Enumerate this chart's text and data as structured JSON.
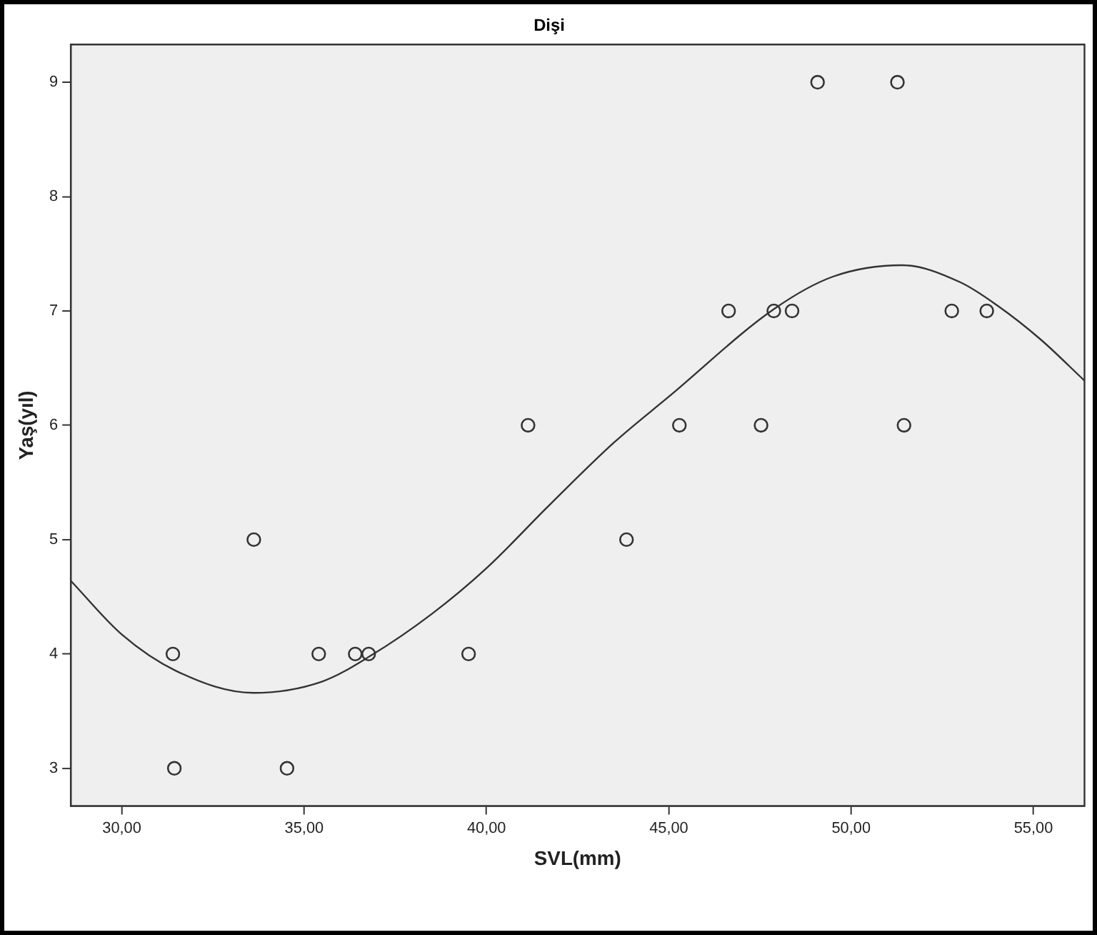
{
  "chart_data": {
    "type": "scatter",
    "title": "Dişi",
    "xlabel": "SVL(mm)",
    "ylabel": "Yaş(yıl)",
    "xlim": [
      28.6,
      56.4
    ],
    "ylim": [
      2.67,
      9.33
    ],
    "xticks": [
      {
        "value": 30,
        "label": "30,00"
      },
      {
        "value": 35,
        "label": "35,00"
      },
      {
        "value": 40,
        "label": "40,00"
      },
      {
        "value": 45,
        "label": "45,00"
      },
      {
        "value": 50,
        "label": "50,00"
      },
      {
        "value": 55,
        "label": "55,00"
      }
    ],
    "yticks": [
      3,
      4,
      5,
      6,
      7,
      8,
      9
    ],
    "series": [
      {
        "marker": "circle",
        "color": "#333333",
        "x": [
          31.4,
          31.44,
          33.62,
          34.53,
          35.4,
          36.4,
          36.77,
          39.51,
          41.14,
          43.84,
          45.29,
          46.64,
          47.53,
          47.88,
          48.38,
          49.08,
          51.27,
          51.45,
          52.76,
          53.72
        ],
        "values": [
          4,
          3,
          5,
          3,
          4,
          4,
          4,
          4,
          6,
          5,
          6,
          7,
          6,
          7,
          7,
          9,
          9,
          6,
          7,
          7
        ]
      },
      {
        "type": "line",
        "marker": "none",
        "color": "#333333",
        "x": [
          28.6,
          30,
          31.5,
          33.6,
          35.5,
          36.8,
          38.5,
          40,
          41.75,
          43.5,
          45,
          47.9,
          49.5,
          51.4,
          53,
          54,
          55.2,
          56.4
        ],
        "values": [
          4.64,
          4.17,
          3.85,
          3.66,
          3.76,
          3.98,
          4.35,
          4.75,
          5.31,
          5.85,
          6.25,
          7.02,
          7.3,
          7.4,
          7.25,
          7.05,
          6.75,
          6.39
        ]
      }
    ]
  }
}
